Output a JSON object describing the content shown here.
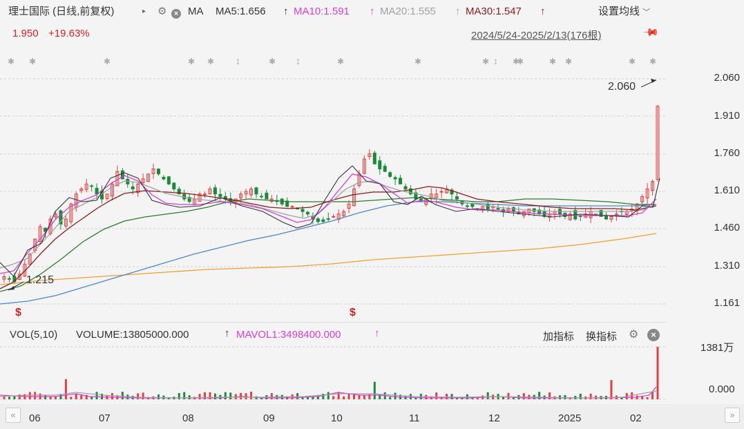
{
  "header": {
    "stock_title": "理士国际 (日线,前复权)",
    "indicator_name": "MA",
    "ma5": "MA5:1.656",
    "ma10": "MA10:1.591",
    "ma20": "MA20:1.555",
    "ma30": "MA30:1.547",
    "settings_label": "设置均线",
    "price": "1.950",
    "change": "+19.63%",
    "date_range": "2024/5/24-2025/2/13(176根)"
  },
  "colors": {
    "ma5": "#333333",
    "ma10": "#d63cd6",
    "ma20": "#a0a0a0",
    "ma30": "#8b1a1a",
    "ma60": "#2a7a2a",
    "ma120": "#4a86c8",
    "ma250": "#f0a030",
    "up": "#e04040",
    "down": "#1a8a3a",
    "accent_red": "#d42020"
  },
  "price_axis": {
    "labels": [
      "2.060",
      "1.910",
      "1.760",
      "1.610",
      "1.460",
      "1.310",
      "1.161"
    ]
  },
  "annotations": {
    "high": "2.060",
    "low": "1.215",
    "marker_s": "$"
  },
  "volume_panel": {
    "title": "VOL(5,10)",
    "volume": "VOLUME:13805000.000",
    "mavol": "MAVOL1:3498400.000",
    "add_indicator": "加指标",
    "switch_indicator": "换指标",
    "axis_top": "1381万",
    "axis_bottom": "0.000"
  },
  "x_axis": {
    "labels": [
      "06",
      "07",
      "08",
      "09",
      "10",
      "11",
      "12",
      "2025",
      "02"
    ]
  },
  "chart_data": {
    "type": "candlestick",
    "date_range": "2024/5/24-2025/2/13",
    "bar_count": 176,
    "ylim": [
      1.161,
      2.06
    ],
    "y_ticks": [
      2.06,
      1.91,
      1.76,
      1.61,
      1.46,
      1.31,
      1.161
    ],
    "x_ticks": [
      "06",
      "07",
      "08",
      "09",
      "10",
      "11",
      "12",
      "2025",
      "02"
    ],
    "series": [
      {
        "name": "MA5",
        "last": 1.656
      },
      {
        "name": "MA10",
        "last": 1.591
      },
      {
        "name": "MA20",
        "last": 1.555
      },
      {
        "name": "MA30",
        "last": 1.547
      }
    ],
    "close_approx": [
      1.27,
      1.26,
      1.25,
      1.28,
      1.32,
      1.36,
      1.42,
      1.47,
      1.45,
      1.5,
      1.52,
      1.48,
      1.5,
      1.56,
      1.6,
      1.62,
      1.64,
      1.63,
      1.6,
      1.58,
      1.6,
      1.64,
      1.69,
      1.66,
      1.64,
      1.62,
      1.64,
      1.66,
      1.68,
      1.7,
      1.68,
      1.66,
      1.64,
      1.62,
      1.6,
      1.58,
      1.57,
      1.58,
      1.6,
      1.6,
      1.62,
      1.6,
      1.59,
      1.58,
      1.57,
      1.58,
      1.6,
      1.61,
      1.62,
      1.6,
      1.59,
      1.58,
      1.58,
      1.57,
      1.56,
      1.55,
      1.55,
      1.54,
      1.53,
      1.52,
      1.5,
      1.49,
      1.49,
      1.5,
      1.51,
      1.52,
      1.53,
      1.56,
      1.62,
      1.68,
      1.74,
      1.76,
      1.72,
      1.7,
      1.69,
      1.67,
      1.66,
      1.64,
      1.62,
      1.6,
      1.58,
      1.57,
      1.58,
      1.6,
      1.6,
      1.61,
      1.62,
      1.6,
      1.58,
      1.56,
      1.55,
      1.55,
      1.54,
      1.55,
      1.54,
      1.55,
      1.54,
      1.53,
      1.54,
      1.53,
      1.52,
      1.53,
      1.54,
      1.53,
      1.52,
      1.51,
      1.52,
      1.53,
      1.52,
      1.51,
      1.52,
      1.5,
      1.51,
      1.52,
      1.53,
      1.52,
      1.51,
      1.5,
      1.51,
      1.52,
      1.53,
      1.53,
      1.54,
      1.56,
      1.59,
      1.62,
      1.65,
      1.95
    ],
    "volume_max": "1381万",
    "last_volume": 13805000,
    "mavol1": 3498400
  }
}
